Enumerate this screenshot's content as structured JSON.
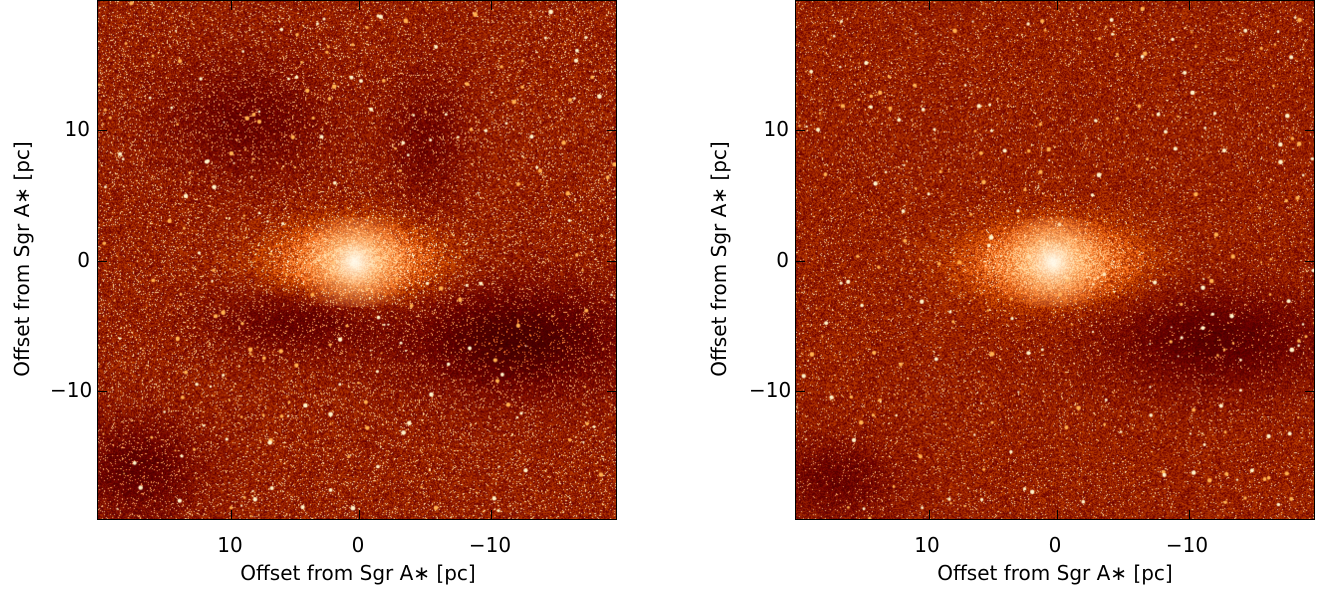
{
  "panels": [
    {
      "id": "left",
      "xlabel": "Offset from Sgr A∗ [pc]",
      "ylabel": "Offset from Sgr A∗ [pc]",
      "xticks": [
        "10",
        "0",
        "−10"
      ],
      "yticks": [
        "10",
        "0",
        "−10"
      ]
    },
    {
      "id": "right",
      "xlabel": "Offset from Sgr A∗ [pc]",
      "ylabel": "Offset from Sgr A∗ [pc]",
      "xticks": [
        "10",
        "0",
        "−10"
      ],
      "yticks": [
        "10",
        "0",
        "−10"
      ]
    }
  ],
  "colors": {
    "dark": "#2a0500",
    "mid": "#b33a00",
    "bright": "#ff9a30",
    "core": "#fff4d8"
  }
}
